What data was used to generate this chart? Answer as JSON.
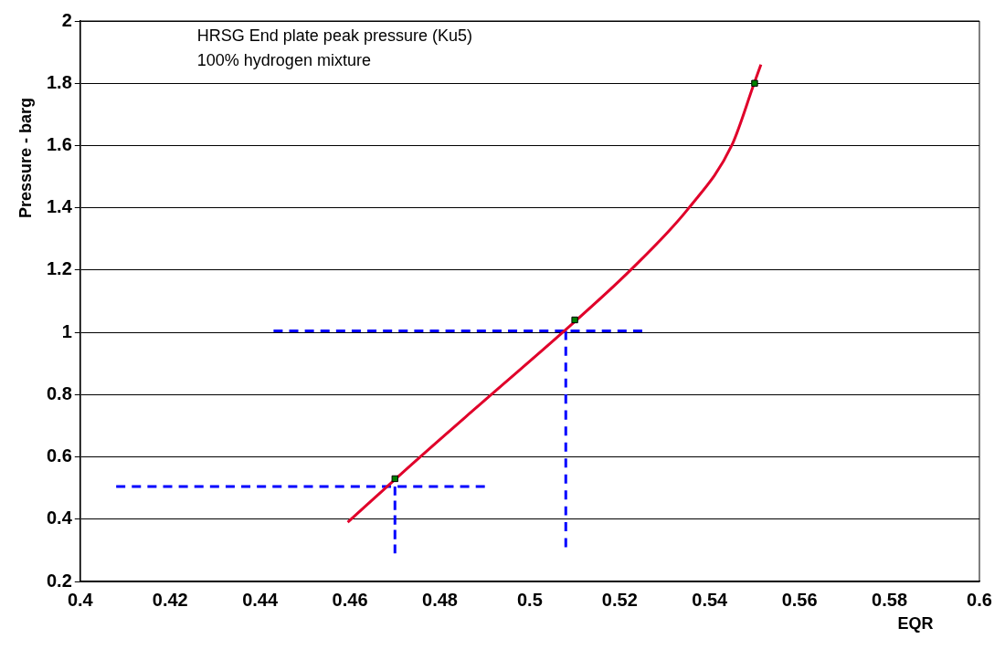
{
  "chart_data": {
    "type": "line",
    "xlabel": "EQR",
    "ylabel": "Pressure - barg",
    "annotations": [
      "HRSG End plate peak pressure (Ku5)",
      "100% hydrogen mixture"
    ],
    "xlim": [
      0.4,
      0.6
    ],
    "xticks": [
      0.4,
      0.42,
      0.44,
      0.46,
      0.48,
      0.5,
      0.52,
      0.54,
      0.56,
      0.58,
      0.6
    ],
    "ylim": [
      0.2,
      2
    ],
    "yticks": [
      0.2,
      0.4,
      0.6,
      0.8,
      1,
      1.2,
      1.4,
      1.6,
      1.8,
      2
    ],
    "grid": "y",
    "legend": false,
    "series": [
      {
        "type": "line",
        "color": "#e0002a",
        "marker": "none",
        "line_style": "solid",
        "x": [
          0.4595,
          0.4756,
          0.4914,
          0.5073,
          0.5224,
          0.5354,
          0.5449,
          0.5499,
          0.5514
        ],
        "values": [
          0.39,
          0.6,
          0.8,
          1,
          1.2,
          1.4,
          1.6,
          1.8,
          1.86
        ]
      },
      {
        "type": "scatter",
        "color": "#008000",
        "marker": "square",
        "x": [
          0.47,
          0.51,
          0.55
        ],
        "values": [
          0.53,
          1.04,
          1.8
        ]
      },
      {
        "type": "line",
        "color": "#0000ff",
        "marker": "none",
        "line_style": "dashed",
        "x": [
          0.408,
          0.49
        ],
        "values": [
          0.505,
          0.505
        ]
      },
      {
        "type": "line",
        "color": "#0000ff",
        "marker": "none",
        "line_style": "dashed",
        "x": [
          0.47,
          0.47
        ],
        "values": [
          0.505,
          0.29
        ]
      },
      {
        "type": "line",
        "color": "#0000ff",
        "marker": "none",
        "line_style": "dashed",
        "x": [
          0.443,
          0.525
        ],
        "values": [
          1.005,
          1.005
        ]
      },
      {
        "type": "line",
        "color": "#0000ff",
        "marker": "none",
        "line_style": "dashed",
        "x": [
          0.508,
          0.508
        ],
        "values": [
          1.005,
          0.31
        ]
      }
    ]
  }
}
